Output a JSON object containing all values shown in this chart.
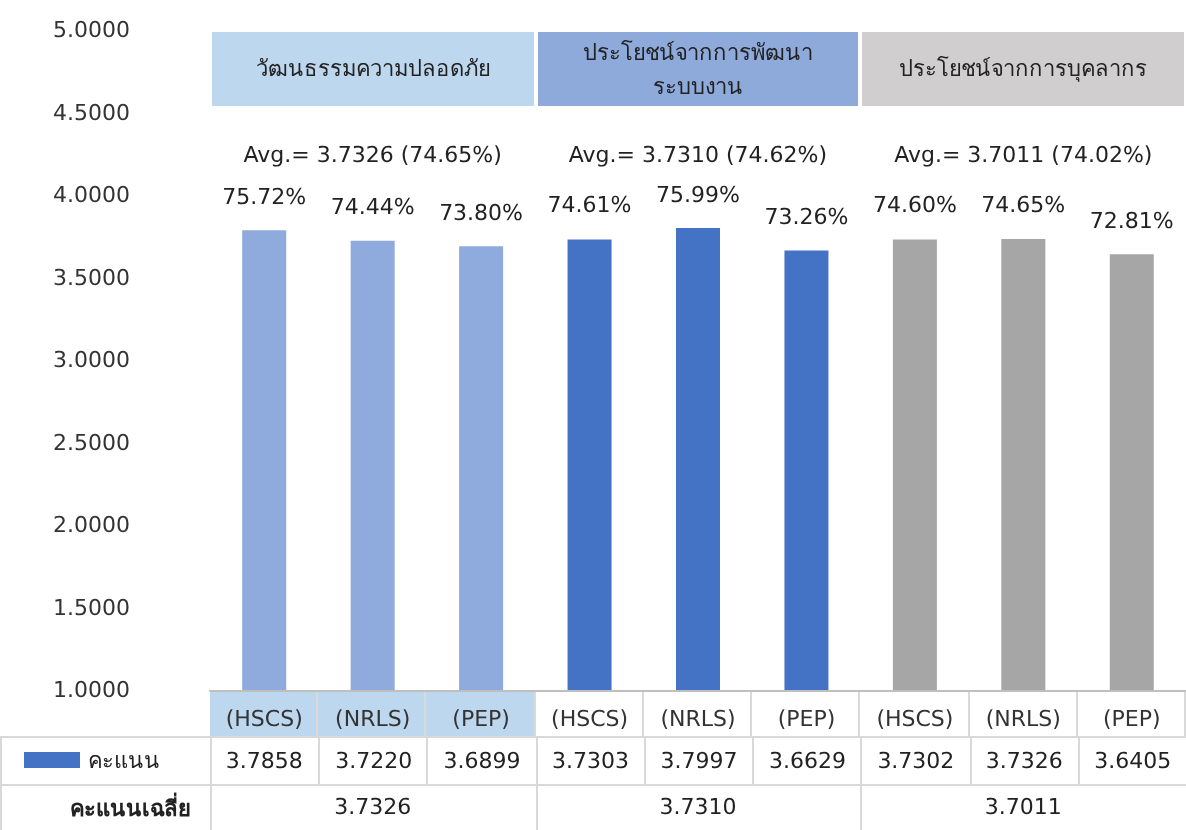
{
  "chart_data": {
    "type": "bar",
    "categories": [
      "(HSCS)",
      "(NRLS)",
      "(PEP)",
      "(HSCS)",
      "(NRLS)",
      "(PEP)",
      "(HSCS)",
      "(NRLS)",
      "(PEP)"
    ],
    "series": [
      {
        "name": "คะแนน",
        "color": "#4472c4",
        "colors": [
          "#8faadc",
          "#8faadc",
          "#8faadc",
          "#4472c4",
          "#4472c4",
          "#4472c4",
          "#a6a6a6",
          "#a6a6a6",
          "#a6a6a6"
        ],
        "values": [
          3.7858,
          3.722,
          3.6899,
          3.7303,
          3.7997,
          3.6629,
          3.7302,
          3.7326,
          3.6405
        ],
        "value_labels": [
          "3.7858",
          "3.7220",
          "3.6899",
          "3.7303",
          "3.7997",
          "3.6629",
          "3.7302",
          "3.7326",
          "3.6405"
        ]
      }
    ],
    "ylim": [
      1,
      5
    ],
    "yticks": [
      {
        "value": 1,
        "label": "1.0000"
      },
      {
        "value": 1.5,
        "label": "1.5000"
      },
      {
        "value": 2,
        "label": "2.0000"
      },
      {
        "value": 2.5,
        "label": "2.5000"
      },
      {
        "value": 3,
        "label": "3.0000"
      },
      {
        "value": 3.5,
        "label": "3.5000"
      },
      {
        "value": 4,
        "label": "4.0000"
      },
      {
        "value": 4.5,
        "label": "4.5000"
      },
      {
        "value": 5,
        "label": "5.0000"
      }
    ],
    "grid": false,
    "annotations": [
      "วัฒนธรรมความปลอดภัย",
      "ประโยชน์จากการพัฒนาระบบงาน",
      "ประโยชน์จากการบุคลากร",
      "Avg.= 3.7326  (74.65%)",
      "Avg.= 3.7310  (74.62%)",
      "Avg.= 3.7011  (74.02%)",
      "คะแนนเฉลี่ย",
      "3.7326",
      "3.7310",
      "3.7011",
      "75.72%",
      "74.44%",
      "73.80%",
      "74.61%",
      "75.99%",
      "73.26%",
      "74.60%",
      "74.65%",
      "72.81%"
    ]
  }
}
